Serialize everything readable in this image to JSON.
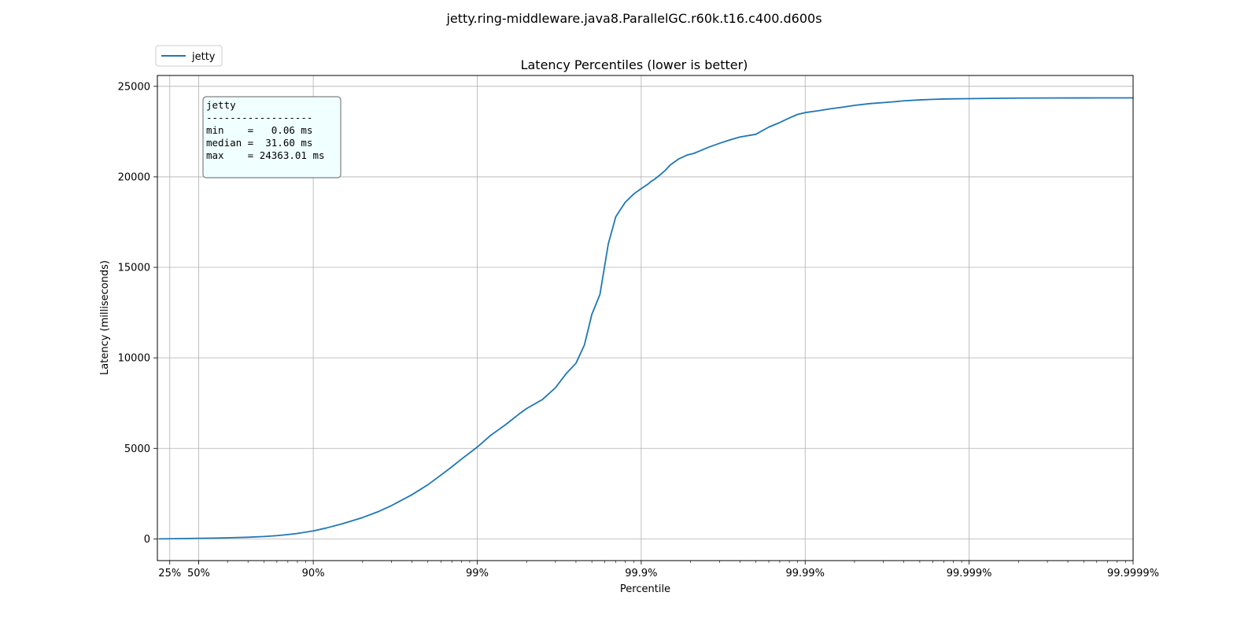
{
  "chart_data": {
    "type": "line",
    "title": "jetty.ring-middleware.java8.ParallelGC.r60k.t16.c400.d600s",
    "subtitle": "Latency Percentiles (lower is better)",
    "xlabel": "Percentile",
    "ylabel": "Latency (milliseconds)",
    "x_scale": "log(1/(1-percentile))",
    "xlim": [
      1.12,
      1000000
    ],
    "ylim": [
      -1200,
      25600
    ],
    "x_ticks": [
      {
        "value": 1.333,
        "label": "25%"
      },
      {
        "value": 2,
        "label": "50%"
      },
      {
        "value": 10,
        "label": "90%"
      },
      {
        "value": 100,
        "label": "99%"
      },
      {
        "value": 1000,
        "label": "99.9%"
      },
      {
        "value": 10000,
        "label": "99.99%"
      },
      {
        "value": 100000,
        "label": "99.999%"
      },
      {
        "value": 1000000,
        "label": "99.9999%"
      }
    ],
    "y_ticks": [
      0,
      5000,
      10000,
      15000,
      20000,
      25000
    ],
    "grid": true,
    "legend": {
      "position": "top-left",
      "entries": [
        "jetty"
      ]
    },
    "series": [
      {
        "name": "jetty",
        "color": "#1f77b4",
        "x": [
          1.14,
          1.3,
          1.6,
          2,
          2.5,
          3,
          4,
          5,
          6,
          7,
          8,
          10,
          12,
          15,
          20,
          25,
          30,
          40,
          50,
          60,
          70,
          80,
          100,
          120,
          150,
          180,
          200,
          250,
          300,
          350,
          400,
          450,
          500,
          560,
          630,
          700,
          800,
          900,
          1000,
          1100,
          1150,
          1200,
          1300,
          1400,
          1500,
          1700,
          1900,
          2100,
          2300,
          2600,
          3000,
          3500,
          4000,
          5000,
          6000,
          7000,
          8000,
          9000,
          10000,
          12000,
          14000,
          17000,
          20000,
          25000,
          30000,
          35000,
          40000,
          50000,
          60000,
          70000,
          80000,
          100000,
          120000,
          150000,
          200000,
          300000,
          500000,
          1000000
        ],
        "y": [
          0.06,
          5,
          15,
          31.6,
          45,
          60,
          90,
          130,
          180,
          240,
          300,
          440,
          600,
          830,
          1180,
          1510,
          1840,
          2440,
          2990,
          3520,
          3980,
          4400,
          5070,
          5700,
          6330,
          6900,
          7200,
          7700,
          8350,
          9150,
          9700,
          10700,
          12400,
          13500,
          16300,
          17800,
          18600,
          19050,
          19350,
          19600,
          19750,
          19850,
          20100,
          20350,
          20650,
          21000,
          21200,
          21300,
          21450,
          21650,
          21850,
          22050,
          22200,
          22350,
          22750,
          23000,
          23250,
          23450,
          23550,
          23650,
          23750,
          23850,
          23950,
          24050,
          24100,
          24150,
          24200,
          24250,
          24280,
          24300,
          24310,
          24320,
          24330,
          24340,
          24350,
          24355,
          24360,
          24363.01
        ]
      }
    ],
    "annotation_box": {
      "lines": [
        "jetty",
        "------------------",
        "min    =   0.06 ms",
        "median =  31.60 ms",
        "max    = 24363.01 ms"
      ],
      "facecolor": "#f0ffff",
      "edgecolor": "#808080"
    }
  }
}
